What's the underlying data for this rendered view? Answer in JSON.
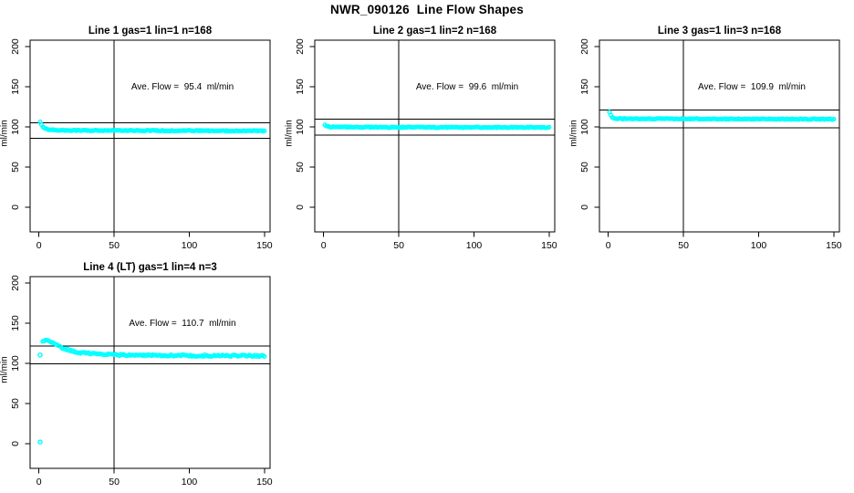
{
  "main_title": "NWR_090126  Line Flow Shapes",
  "chart_data": [
    {
      "type": "scatter",
      "title": "Line 1 gas=1 lin=1 n=168",
      "annotation": "Ave. Flow =  95.4  ml/min",
      "ave_flow": 95.4,
      "ylabel": "ml/min",
      "xlim": [
        0,
        150
      ],
      "ylim": [
        0,
        200
      ],
      "x_ticks": [
        0,
        50,
        100,
        150
      ],
      "y_ticks": [
        0,
        50,
        100,
        150,
        200
      ],
      "vline_x": 50,
      "hlines": [
        104.9,
        85.9
      ],
      "point_color": "#00FFFF",
      "line_color": "#000000",
      "grid": false,
      "legend": "none",
      "n_points": 168,
      "x_start": 0.8,
      "x_end": 150,
      "noise": 0.55,
      "anchors": [
        [
          0.8,
          106
        ],
        [
          1.6,
          103
        ],
        [
          2.4,
          100.5
        ],
        [
          3.5,
          98.5
        ],
        [
          5,
          97.3
        ],
        [
          8,
          96.3
        ],
        [
          14,
          95.8
        ],
        [
          30,
          95.5
        ],
        [
          80,
          95.3
        ],
        [
          150,
          95.0
        ]
      ],
      "outliers": []
    },
    {
      "type": "scatter",
      "title": "Line 2 gas=1 lin=2 n=168",
      "annotation": "Ave. Flow =  99.6  ml/min",
      "ave_flow": 99.6,
      "ylabel": "ml/min",
      "xlim": [
        0,
        150
      ],
      "ylim": [
        0,
        200
      ],
      "x_ticks": [
        0,
        50,
        100,
        150
      ],
      "y_ticks": [
        0,
        50,
        100,
        150,
        200
      ],
      "vline_x": 50,
      "hlines": [
        109.6,
        89.6
      ],
      "point_color": "#00FFFF",
      "line_color": "#000000",
      "grid": false,
      "legend": "none",
      "n_points": 168,
      "x_start": 0.8,
      "x_end": 150,
      "noise": 0.55,
      "anchors": [
        [
          0.8,
          103
        ],
        [
          2,
          100.8
        ],
        [
          4,
          100.0
        ],
        [
          8,
          99.8
        ],
        [
          30,
          99.6
        ],
        [
          150,
          99.3
        ]
      ],
      "outliers": []
    },
    {
      "type": "scatter",
      "title": "Line 3 gas=1 lin=3 n=168",
      "annotation": "Ave. Flow =  109.9  ml/min",
      "ave_flow": 109.9,
      "ylabel": "ml/min",
      "xlim": [
        0,
        150
      ],
      "ylim": [
        0,
        200
      ],
      "x_ticks": [
        0,
        50,
        100,
        150
      ],
      "y_ticks": [
        0,
        50,
        100,
        150,
        200
      ],
      "vline_x": 50,
      "hlines": [
        120.9,
        98.9
      ],
      "point_color": "#00FFFF",
      "line_color": "#000000",
      "grid": false,
      "legend": "none",
      "n_points": 168,
      "x_start": 0.8,
      "x_end": 150,
      "noise": 0.55,
      "anchors": [
        [
          0.8,
          118.5
        ],
        [
          1.6,
          114.5
        ],
        [
          2.6,
          112
        ],
        [
          4,
          110.8
        ],
        [
          8,
          110.2
        ],
        [
          30,
          110.0
        ],
        [
          150,
          109.6
        ]
      ],
      "outliers": []
    },
    {
      "type": "scatter",
      "title": "Line 4 (LT) gas=1 lin=4 n=3",
      "annotation": "Ave. Flow =  110.7  ml/min",
      "ave_flow": 110.7,
      "ylabel": "ml/min",
      "xlim": [
        0,
        150
      ],
      "ylim": [
        0,
        200
      ],
      "x_ticks": [
        0,
        50,
        100,
        150
      ],
      "y_ticks": [
        0,
        50,
        100,
        150,
        200
      ],
      "vline_x": 50,
      "hlines": [
        121.8,
        99.6
      ],
      "point_color": "#00FFFF",
      "line_color": "#000000",
      "grid": false,
      "legend": "none",
      "n_points": 160,
      "x_start": 2.5,
      "x_end": 150,
      "noise": 1.1,
      "anchors": [
        [
          2.5,
          127
        ],
        [
          4,
          128.5
        ],
        [
          6,
          128
        ],
        [
          8,
          126.5
        ],
        [
          11,
          123.5
        ],
        [
          14,
          120.5
        ],
        [
          18,
          117.5
        ],
        [
          23,
          114.8
        ],
        [
          30,
          112.8
        ],
        [
          40,
          111.3
        ],
        [
          55,
          110.4
        ],
        [
          80,
          109.9
        ],
        [
          150,
          109.2
        ]
      ],
      "outliers": [
        [
          0.8,
          2
        ],
        [
          0.8,
          110.5
        ]
      ]
    }
  ]
}
